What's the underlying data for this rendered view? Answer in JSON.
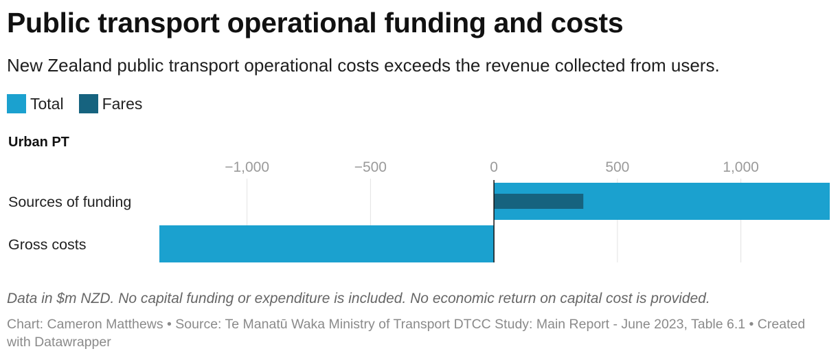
{
  "title": "Public transport operational funding and costs",
  "subtitle": "New Zealand public transport operational costs exceeds the revenue collected from users.",
  "legend": [
    {
      "label": "Total",
      "color": "#1ba1cf"
    },
    {
      "label": "Fares",
      "color": "#16637f"
    }
  ],
  "notes": "Data in $m NZD. No capital funding or expenditure is included. No economic return on capital cost is provided.",
  "footer": {
    "credit": "Chart: Cameron Matthews",
    "source": "Source: Te Manatū Waka Ministry of Transport DTCC Study: Main Report - June 2023, Table 6.1",
    "tool": "Created with Datawrapper"
  },
  "chart_data": {
    "type": "bar",
    "orientation": "horizontal",
    "panel_title": "Urban PT",
    "categories": [
      "Sources of funding",
      "Gross costs"
    ],
    "series": [
      {
        "name": "Total",
        "values": [
          1360,
          -1355
        ],
        "color": "#1ba1cf"
      },
      {
        "name": "Fares",
        "values": [
          362,
          null
        ],
        "color": "#16637f"
      }
    ],
    "xlim": [
      -1355,
      1360
    ],
    "ticks": [
      -1000,
      -500,
      0,
      500,
      1000
    ],
    "tick_labels": [
      "−1,000",
      "−500",
      "0",
      "500",
      "1,000"
    ],
    "units": "$m NZD",
    "grid": true,
    "legend_position": "top-left"
  }
}
